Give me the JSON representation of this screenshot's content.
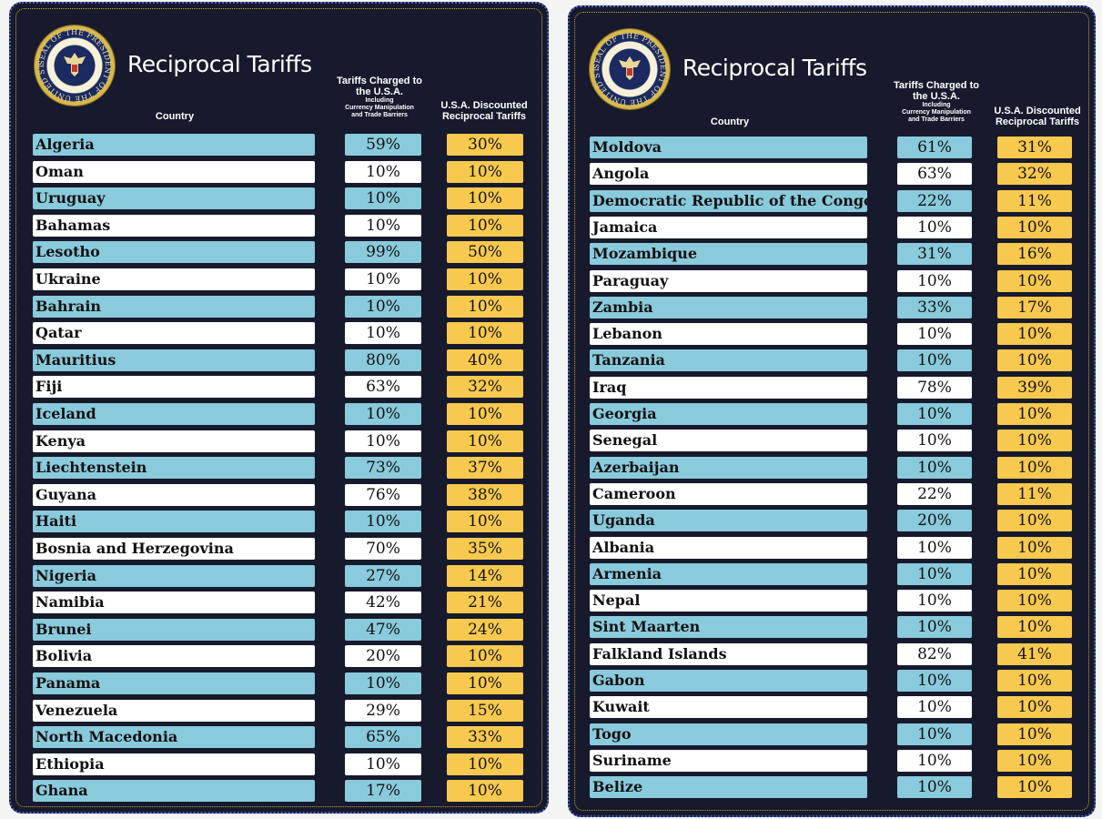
{
  "title": "Reciprocal Tariffs",
  "seal_text": "SEAL OF THE PRESIDENT OF THE UNITED STATES",
  "headers": {
    "country": "Country",
    "charged_main": "Tariffs Charged to the U.S.A.",
    "charged_sub1": "Including",
    "charged_sub2": "Currency Manipulation",
    "charged_sub3": "and Trade Barriers",
    "discounted": "U.S.A. Discounted Reciprocal Tariffs"
  },
  "colors": {
    "background": "#171a2c",
    "blue_row": "#89cadc",
    "white_row": "#ffffff",
    "gold": "#f7c94e"
  },
  "left_table": [
    {
      "country": "Algeria",
      "charged": "59%",
      "reciprocal": "30%"
    },
    {
      "country": "Oman",
      "charged": "10%",
      "reciprocal": "10%"
    },
    {
      "country": "Uruguay",
      "charged": "10%",
      "reciprocal": "10%"
    },
    {
      "country": "Bahamas",
      "charged": "10%",
      "reciprocal": "10%"
    },
    {
      "country": "Lesotho",
      "charged": "99%",
      "reciprocal": "50%"
    },
    {
      "country": "Ukraine",
      "charged": "10%",
      "reciprocal": "10%"
    },
    {
      "country": "Bahrain",
      "charged": "10%",
      "reciprocal": "10%"
    },
    {
      "country": "Qatar",
      "charged": "10%",
      "reciprocal": "10%"
    },
    {
      "country": "Mauritius",
      "charged": "80%",
      "reciprocal": "40%"
    },
    {
      "country": "Fiji",
      "charged": "63%",
      "reciprocal": "32%"
    },
    {
      "country": "Iceland",
      "charged": "10%",
      "reciprocal": "10%"
    },
    {
      "country": "Kenya",
      "charged": "10%",
      "reciprocal": "10%"
    },
    {
      "country": "Liechtenstein",
      "charged": "73%",
      "reciprocal": "37%"
    },
    {
      "country": "Guyana",
      "charged": "76%",
      "reciprocal": "38%"
    },
    {
      "country": "Haiti",
      "charged": "10%",
      "reciprocal": "10%"
    },
    {
      "country": "Bosnia and Herzegovina",
      "charged": "70%",
      "reciprocal": "35%"
    },
    {
      "country": "Nigeria",
      "charged": "27%",
      "reciprocal": "14%"
    },
    {
      "country": "Namibia",
      "charged": "42%",
      "reciprocal": "21%"
    },
    {
      "country": "Brunei",
      "charged": "47%",
      "reciprocal": "24%"
    },
    {
      "country": "Bolivia",
      "charged": "20%",
      "reciprocal": "10%"
    },
    {
      "country": "Panama",
      "charged": "10%",
      "reciprocal": "10%"
    },
    {
      "country": "Venezuela",
      "charged": "29%",
      "reciprocal": "15%"
    },
    {
      "country": "North Macedonia",
      "charged": "65%",
      "reciprocal": "33%"
    },
    {
      "country": "Ethiopia",
      "charged": "10%",
      "reciprocal": "10%"
    },
    {
      "country": "Ghana",
      "charged": "17%",
      "reciprocal": "10%"
    }
  ],
  "right_table": [
    {
      "country": "Moldova",
      "charged": "61%",
      "reciprocal": "31%"
    },
    {
      "country": "Angola",
      "charged": "63%",
      "reciprocal": "32%"
    },
    {
      "country": "Democratic Republic of the Congo",
      "charged": "22%",
      "reciprocal": "11%"
    },
    {
      "country": "Jamaica",
      "charged": "10%",
      "reciprocal": "10%"
    },
    {
      "country": "Mozambique",
      "charged": "31%",
      "reciprocal": "16%"
    },
    {
      "country": "Paraguay",
      "charged": "10%",
      "reciprocal": "10%"
    },
    {
      "country": "Zambia",
      "charged": "33%",
      "reciprocal": "17%"
    },
    {
      "country": "Lebanon",
      "charged": "10%",
      "reciprocal": "10%"
    },
    {
      "country": "Tanzania",
      "charged": "10%",
      "reciprocal": "10%"
    },
    {
      "country": "Iraq",
      "charged": "78%",
      "reciprocal": "39%"
    },
    {
      "country": "Georgia",
      "charged": "10%",
      "reciprocal": "10%"
    },
    {
      "country": "Senegal",
      "charged": "10%",
      "reciprocal": "10%"
    },
    {
      "country": "Azerbaijan",
      "charged": "10%",
      "reciprocal": "10%"
    },
    {
      "country": "Cameroon",
      "charged": "22%",
      "reciprocal": "11%"
    },
    {
      "country": "Uganda",
      "charged": "20%",
      "reciprocal": "10%"
    },
    {
      "country": "Albania",
      "charged": "10%",
      "reciprocal": "10%"
    },
    {
      "country": "Armenia",
      "charged": "10%",
      "reciprocal": "10%"
    },
    {
      "country": "Nepal",
      "charged": "10%",
      "reciprocal": "10%"
    },
    {
      "country": "Sint Maarten",
      "charged": "10%",
      "reciprocal": "10%"
    },
    {
      "country": "Falkland Islands",
      "charged": "82%",
      "reciprocal": "41%"
    },
    {
      "country": "Gabon",
      "charged": "10%",
      "reciprocal": "10%"
    },
    {
      "country": "Kuwait",
      "charged": "10%",
      "reciprocal": "10%"
    },
    {
      "country": "Togo",
      "charged": "10%",
      "reciprocal": "10%"
    },
    {
      "country": "Suriname",
      "charged": "10%",
      "reciprocal": "10%"
    },
    {
      "country": "Belize",
      "charged": "10%",
      "reciprocal": "10%"
    }
  ]
}
